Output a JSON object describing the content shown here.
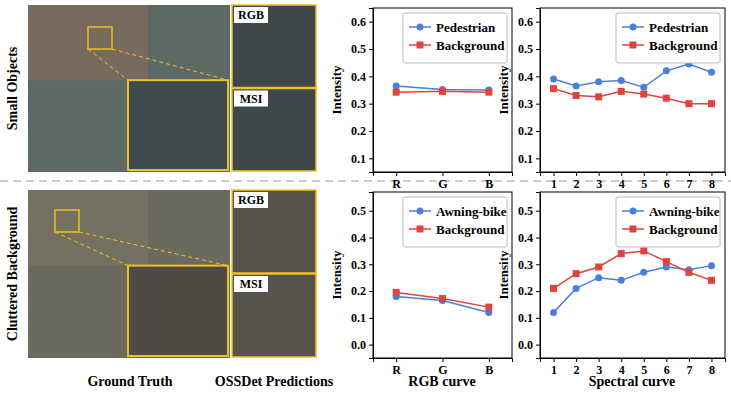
{
  "figure": {
    "rows": [
      "Small Objects",
      "Cluttered Background"
    ],
    "columns": [
      "Ground Truth",
      "OSSDet Predictions",
      "RGB curve",
      "Spectral curve"
    ],
    "panels": [
      "RGB",
      "MSI"
    ]
  },
  "chart_data": [
    {
      "type": "line",
      "ylabel": "Intensity",
      "categories": [
        "R",
        "G",
        "B"
      ],
      "ylim": [
        0.05,
        0.65
      ],
      "yticks": [
        0.1,
        0.2,
        0.3,
        0.4,
        0.5,
        0.6
      ],
      "legend": "upper right",
      "series": [
        {
          "name": "Pedestrian",
          "color": "#4a7fdc",
          "marker": "circle",
          "values": [
            0.365,
            0.352,
            0.35
          ]
        },
        {
          "name": "Background",
          "color": "#e0443e",
          "marker": "square",
          "values": [
            0.342,
            0.345,
            0.342
          ]
        }
      ]
    },
    {
      "type": "line",
      "ylabel": "Intensity",
      "x": [
        1,
        2,
        3,
        4,
        5,
        6,
        7,
        8
      ],
      "xlim": [
        0.4,
        8.6
      ],
      "xticks": [
        1,
        2,
        3,
        4,
        5,
        6,
        7,
        8
      ],
      "ylim": [
        0.05,
        0.65
      ],
      "yticks": [
        0.1,
        0.2,
        0.3,
        0.4,
        0.5,
        0.6
      ],
      "legend": "upper right",
      "series": [
        {
          "name": "Pedestrian",
          "color": "#4a7fdc",
          "marker": "circle",
          "values": [
            0.39,
            0.365,
            0.38,
            0.385,
            0.36,
            0.42,
            0.445,
            0.415
          ]
        },
        {
          "name": "Background",
          "color": "#e0443e",
          "marker": "square",
          "values": [
            0.355,
            0.33,
            0.325,
            0.345,
            0.335,
            0.32,
            0.3,
            0.3
          ]
        }
      ]
    },
    {
      "type": "line",
      "ylabel": "Intensity",
      "categories": [
        "R",
        "G",
        "B"
      ],
      "ylim": [
        -0.05,
        0.57
      ],
      "yticks": [
        {
          "value": 0,
          "label": "0.0"
        },
        0.1,
        0.2,
        0.3,
        0.4,
        0.5
      ],
      "legend": "upper right",
      "series": [
        {
          "name": "Awning-bike",
          "color": "#4a7fdc",
          "marker": "circle",
          "values": [
            0.18,
            0.165,
            0.12
          ]
        },
        {
          "name": "Background",
          "color": "#e0443e",
          "marker": "square",
          "values": [
            0.195,
            0.172,
            0.14
          ]
        }
      ]
    },
    {
      "type": "line",
      "ylabel": "Intensity",
      "x": [
        1,
        2,
        3,
        4,
        5,
        6,
        7,
        8
      ],
      "xlim": [
        0.4,
        8.6
      ],
      "xticks": [
        1,
        2,
        3,
        4,
        5,
        6,
        7,
        8
      ],
      "ylim": [
        -0.05,
        0.57
      ],
      "yticks": [
        {
          "value": 0,
          "label": "0.0"
        },
        0.1,
        0.2,
        0.3,
        0.4,
        0.5
      ],
      "legend": "upper right",
      "series": [
        {
          "name": "Awning-bike",
          "color": "#4a7fdc",
          "marker": "circle",
          "values": [
            0.12,
            0.21,
            0.25,
            0.24,
            0.27,
            0.29,
            0.28,
            0.295
          ]
        },
        {
          "name": "Background",
          "color": "#e0443e",
          "marker": "square",
          "values": [
            0.21,
            0.265,
            0.29,
            0.34,
            0.35,
            0.31,
            0.27,
            0.24
          ]
        }
      ]
    }
  ]
}
